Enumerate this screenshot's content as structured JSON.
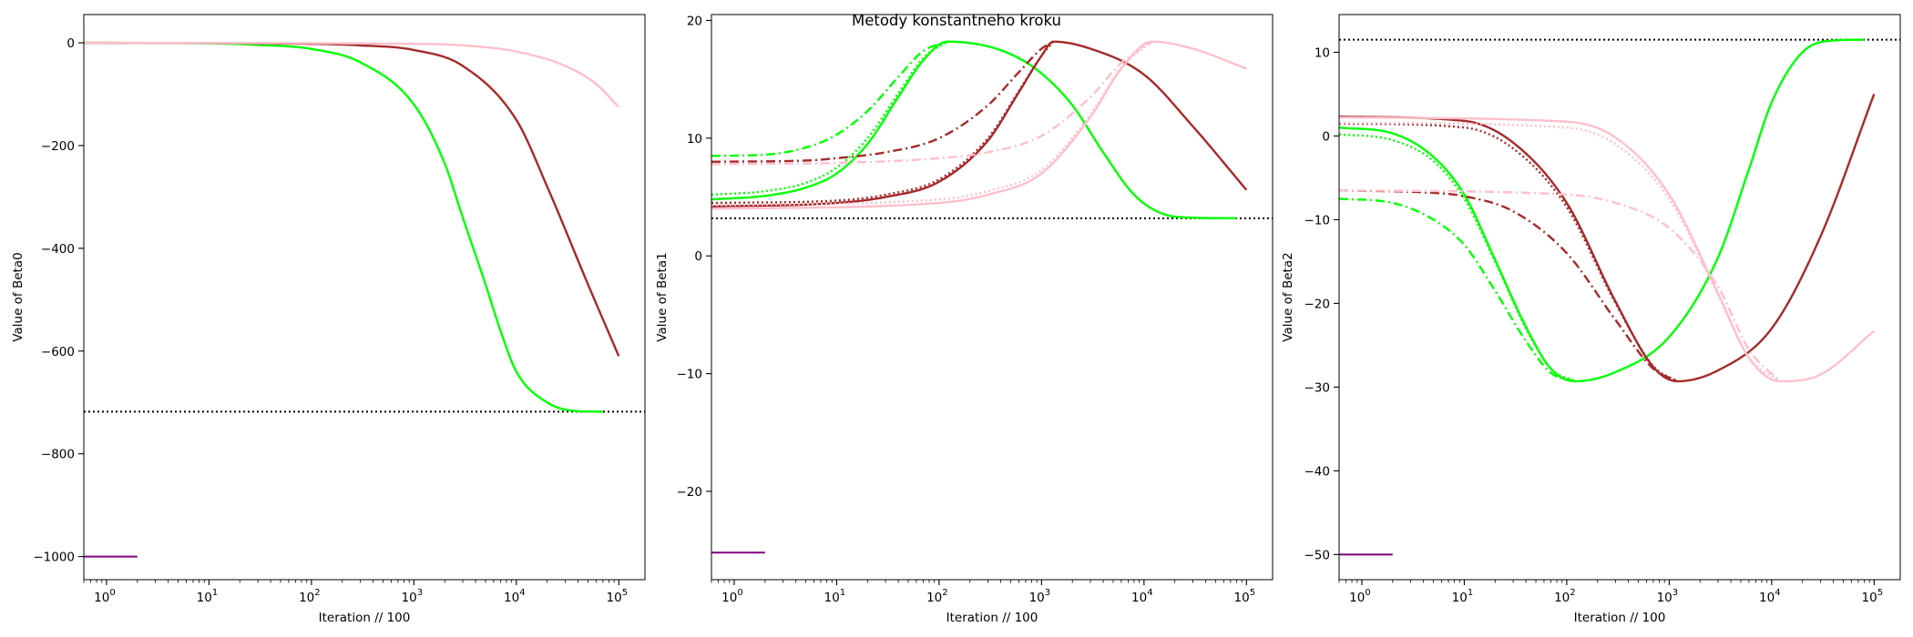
{
  "figure": {
    "suptitle": "Metody konstantneho kroku"
  },
  "colors": {
    "green": "#00ff00",
    "brown": "#a52a2a",
    "pink": "#ffc0cb",
    "purple": "#800080",
    "reference": "#000000"
  },
  "chart_data": [
    {
      "type": "line",
      "title": "",
      "xlabel": "Iteration // 100",
      "ylabel": "Value of Beta0",
      "xscale": "log",
      "xlim": [
        0.6,
        180000
      ],
      "ylim": [
        -1045,
        55
      ],
      "xtick_exponents": [
        0,
        1,
        2,
        3,
        4,
        5
      ],
      "yticks": [
        0,
        -200,
        -400,
        -600,
        -800,
        -1000
      ],
      "ytick_labels": [
        "0",
        "−200",
        "−400",
        "−600",
        "−800",
        "−1000"
      ],
      "hline": {
        "y": -718,
        "style": "dotted",
        "color": "black"
      },
      "grid": false,
      "legend": "none",
      "series": [
        {
          "color": "green",
          "style": "solid",
          "x_end": 70000,
          "points": [
            [
              0.6,
              0
            ],
            [
              10,
              -1
            ],
            [
              30,
              -4
            ],
            [
              100,
              -12
            ],
            [
              300,
              -38
            ],
            [
              1000,
              -120
            ],
            [
              2000,
              -235
            ],
            [
              3000,
              -340
            ],
            [
              5000,
              -470
            ],
            [
              7000,
              -560
            ],
            [
              10000,
              -640
            ],
            [
              20000,
              -700
            ],
            [
              40000,
              -717
            ],
            [
              70000,
              -718
            ]
          ]
        },
        {
          "color": "brown",
          "style": "solid",
          "x_end": 100000,
          "points": [
            [
              0.6,
              0
            ],
            [
              100,
              -2
            ],
            [
              300,
              -5
            ],
            [
              1000,
              -14
            ],
            [
              3000,
              -45
            ],
            [
              10000,
              -150
            ],
            [
              20000,
              -280
            ],
            [
              50000,
              -470
            ],
            [
              100000,
              -610
            ]
          ]
        },
        {
          "color": "pink",
          "style": "solid",
          "x_end": 100000,
          "points": [
            [
              0.6,
              0
            ],
            [
              1000,
              -2
            ],
            [
              3000,
              -5
            ],
            [
              10000,
              -17
            ],
            [
              30000,
              -45
            ],
            [
              60000,
              -80
            ],
            [
              100000,
              -125
            ]
          ]
        },
        {
          "color": "purple",
          "style": "solid",
          "x_end": 2,
          "points": [
            [
              0.6,
              -1000
            ],
            [
              2,
              -1000
            ]
          ]
        }
      ]
    },
    {
      "type": "line",
      "title": "",
      "xlabel": "Iteration // 100",
      "ylabel": "Value of Beta1",
      "xscale": "log",
      "xlim": [
        0.6,
        180000
      ],
      "ylim": [
        -27.5,
        20.5
      ],
      "xtick_exponents": [
        0,
        1,
        2,
        3,
        4,
        5
      ],
      "yticks": [
        20,
        10,
        0,
        -10,
        -20
      ],
      "ytick_labels": [
        "20",
        "10",
        "0",
        "−10",
        "−20"
      ],
      "hline": {
        "y": 3.2,
        "style": "dotted",
        "color": "black"
      },
      "grid": false,
      "legend": "none",
      "series": [
        {
          "color": "green",
          "style": "dashdot",
          "x_end": 120,
          "points": [
            [
              0.6,
              8.5
            ],
            [
              2,
              8.6
            ],
            [
              5,
              9.2
            ],
            [
              10,
              10.3
            ],
            [
              20,
              12.3
            ],
            [
              40,
              15.2
            ],
            [
              70,
              17.4
            ],
            [
              120,
              18.2
            ]
          ]
        },
        {
          "color": "green",
          "style": "dotted",
          "x_end": 120,
          "points": [
            [
              0.6,
              5.2
            ],
            [
              2,
              5.5
            ],
            [
              5,
              6.2
            ],
            [
              10,
              7.5
            ],
            [
              20,
              10.0
            ],
            [
              40,
              13.8
            ],
            [
              70,
              16.8
            ],
            [
              120,
              18.2
            ]
          ]
        },
        {
          "color": "green",
          "style": "solid",
          "x_end": 80000,
          "points": [
            [
              0.6,
              4.8
            ],
            [
              2,
              5.1
            ],
            [
              5,
              5.8
            ],
            [
              10,
              7.0
            ],
            [
              20,
              9.5
            ],
            [
              40,
              13.5
            ],
            [
              70,
              16.6
            ],
            [
              120,
              18.2
            ],
            [
              300,
              17.8
            ],
            [
              600,
              16.8
            ],
            [
              1000,
              15.5
            ],
            [
              2000,
              12.8
            ],
            [
              4000,
              8.8
            ],
            [
              8000,
              5.2
            ],
            [
              15000,
              3.6
            ],
            [
              30000,
              3.25
            ],
            [
              80000,
              3.2
            ]
          ]
        },
        {
          "color": "brown",
          "style": "dashdot",
          "x_end": 1300,
          "points": [
            [
              0.6,
              8.0
            ],
            [
              5,
              8.1
            ],
            [
              10,
              8.3
            ],
            [
              30,
              8.8
            ],
            [
              100,
              10.0
            ],
            [
              300,
              12.8
            ],
            [
              600,
              15.6
            ],
            [
              1000,
              17.6
            ],
            [
              1300,
              18.2
            ]
          ]
        },
        {
          "color": "brown",
          "style": "dotted",
          "x_end": 1300,
          "points": [
            [
              0.6,
              4.5
            ],
            [
              10,
              4.7
            ],
            [
              30,
              5.2
            ],
            [
              100,
              6.5
            ],
            [
              300,
              10.0
            ],
            [
              600,
              14.0
            ],
            [
              1000,
              17.0
            ],
            [
              1300,
              18.2
            ]
          ]
        },
        {
          "color": "brown",
          "style": "solid",
          "x_end": 100000,
          "points": [
            [
              0.6,
              4.2
            ],
            [
              10,
              4.5
            ],
            [
              30,
              5.0
            ],
            [
              100,
              6.3
            ],
            [
              300,
              9.8
            ],
            [
              600,
              13.9
            ],
            [
              1000,
              17.0
            ],
            [
              1300,
              18.2
            ],
            [
              3000,
              17.6
            ],
            [
              10000,
              15.4
            ],
            [
              30000,
              11.0
            ],
            [
              100000,
              5.6
            ]
          ]
        },
        {
          "color": "pink",
          "style": "dashdot",
          "x_end": 12000,
          "points": [
            [
              0.6,
              7.8
            ],
            [
              10,
              7.9
            ],
            [
              100,
              8.3
            ],
            [
              300,
              8.8
            ],
            [
              1000,
              10.2
            ],
            [
              3000,
              13.5
            ],
            [
              6000,
              16.4
            ],
            [
              12000,
              18.2
            ]
          ]
        },
        {
          "color": "pink",
          "style": "dotted",
          "x_end": 12000,
          "points": [
            [
              0.6,
              4.3
            ],
            [
              100,
              4.8
            ],
            [
              300,
              5.5
            ],
            [
              1000,
              7.3
            ],
            [
              3000,
              12.0
            ],
            [
              6000,
              16.0
            ],
            [
              12000,
              18.2
            ]
          ]
        },
        {
          "color": "pink",
          "style": "solid",
          "x_end": 100000,
          "points": [
            [
              0.6,
              4.0
            ],
            [
              100,
              4.5
            ],
            [
              300,
              5.2
            ],
            [
              1000,
              7.0
            ],
            [
              3000,
              11.8
            ],
            [
              6000,
              15.9
            ],
            [
              12000,
              18.2
            ],
            [
              30000,
              17.6
            ],
            [
              100000,
              15.9
            ]
          ]
        },
        {
          "color": "purple",
          "style": "solid",
          "x_end": 2,
          "points": [
            [
              0.6,
              -25.2
            ],
            [
              2,
              -25.2
            ]
          ]
        }
      ]
    },
    {
      "type": "line",
      "title": "",
      "xlabel": "Iteration // 100",
      "ylabel": "Value of Beta2",
      "xscale": "log",
      "xlim": [
        0.6,
        180000
      ],
      "ylim": [
        -53,
        14.5
      ],
      "xtick_exponents": [
        0,
        1,
        2,
        3,
        4,
        5
      ],
      "yticks": [
        10,
        0,
        -10,
        -20,
        -30,
        -40,
        -50
      ],
      "ytick_labels": [
        "10",
        "0",
        "−10",
        "−20",
        "−30",
        "−40",
        "−50"
      ],
      "hline": {
        "y": 11.5,
        "style": "dotted",
        "color": "black"
      },
      "grid": false,
      "legend": "none",
      "series": [
        {
          "color": "green",
          "style": "dashdot",
          "x_end": 120,
          "points": [
            [
              0.6,
              -7.5
            ],
            [
              2,
              -8.0
            ],
            [
              5,
              -10.0
            ],
            [
              10,
              -13.0
            ],
            [
              20,
              -18.5
            ],
            [
              40,
              -24.5
            ],
            [
              70,
              -28.3
            ],
            [
              120,
              -29.3
            ]
          ]
        },
        {
          "color": "green",
          "style": "dotted",
          "x_end": 120,
          "points": [
            [
              0.6,
              0.2
            ],
            [
              2,
              -0.5
            ],
            [
              5,
              -3.0
            ],
            [
              10,
              -7.5
            ],
            [
              20,
              -15.0
            ],
            [
              40,
              -23.0
            ],
            [
              70,
              -27.8
            ],
            [
              120,
              -29.3
            ]
          ]
        },
        {
          "color": "green",
          "style": "solid",
          "x_end": 80000,
          "points": [
            [
              0.6,
              1.0
            ],
            [
              2,
              0.3
            ],
            [
              5,
              -2.5
            ],
            [
              10,
              -7.0
            ],
            [
              20,
              -14.8
            ],
            [
              40,
              -22.8
            ],
            [
              70,
              -27.8
            ],
            [
              120,
              -29.3
            ],
            [
              300,
              -28.2
            ],
            [
              1000,
              -24.0
            ],
            [
              3000,
              -14.5
            ],
            [
              6000,
              -4.0
            ],
            [
              10000,
              4.0
            ],
            [
              20000,
              10.0
            ],
            [
              40000,
              11.4
            ],
            [
              80000,
              11.5
            ]
          ]
        },
        {
          "color": "brown",
          "style": "dashdot",
          "x_end": 1200,
          "points": [
            [
              0.6,
              -6.5
            ],
            [
              5,
              -6.8
            ],
            [
              10,
              -7.2
            ],
            [
              30,
              -9.0
            ],
            [
              100,
              -14.0
            ],
            [
              300,
              -22.0
            ],
            [
              700,
              -27.8
            ],
            [
              1200,
              -29.3
            ]
          ]
        },
        {
          "color": "brown",
          "style": "dotted",
          "x_end": 1200,
          "points": [
            [
              0.6,
              1.5
            ],
            [
              10,
              1.0
            ],
            [
              30,
              -1.5
            ],
            [
              100,
              -8.5
            ],
            [
              300,
              -20.0
            ],
            [
              700,
              -27.5
            ],
            [
              1200,
              -29.3
            ]
          ]
        },
        {
          "color": "brown",
          "style": "solid",
          "x_end": 100000,
          "points": [
            [
              0.6,
              2.3
            ],
            [
              10,
              1.8
            ],
            [
              30,
              -0.8
            ],
            [
              100,
              -8.0
            ],
            [
              300,
              -19.8
            ],
            [
              700,
              -27.6
            ],
            [
              1200,
              -29.3
            ],
            [
              3000,
              -28.0
            ],
            [
              10000,
              -23.0
            ],
            [
              30000,
              -12.0
            ],
            [
              100000,
              5.0
            ]
          ]
        },
        {
          "color": "pink",
          "style": "dashdot",
          "x_end": 12000,
          "points": [
            [
              0.6,
              -6.5
            ],
            [
              100,
              -7.0
            ],
            [
              300,
              -8.0
            ],
            [
              1000,
              -11.0
            ],
            [
              3000,
              -18.0
            ],
            [
              6000,
              -25.5
            ],
            [
              12000,
              -29.3
            ]
          ]
        },
        {
          "color": "pink",
          "style": "dotted",
          "x_end": 12000,
          "points": [
            [
              0.6,
              1.6
            ],
            [
              100,
              1.0
            ],
            [
              300,
              -1.0
            ],
            [
              1000,
              -7.5
            ],
            [
              3000,
              -19.0
            ],
            [
              6000,
              -26.5
            ],
            [
              12000,
              -29.3
            ]
          ]
        },
        {
          "color": "pink",
          "style": "solid",
          "x_end": 100000,
          "points": [
            [
              0.6,
              2.2
            ],
            [
              100,
              1.7
            ],
            [
              300,
              -0.2
            ],
            [
              1000,
              -7.0
            ],
            [
              3000,
              -18.8
            ],
            [
              6000,
              -26.5
            ],
            [
              12000,
              -29.3
            ],
            [
              30000,
              -28.5
            ],
            [
              100000,
              -23.3
            ]
          ]
        },
        {
          "color": "purple",
          "style": "solid",
          "x_end": 2,
          "points": [
            [
              0.6,
              -50
            ],
            [
              2,
              -50
            ]
          ]
        }
      ]
    }
  ]
}
